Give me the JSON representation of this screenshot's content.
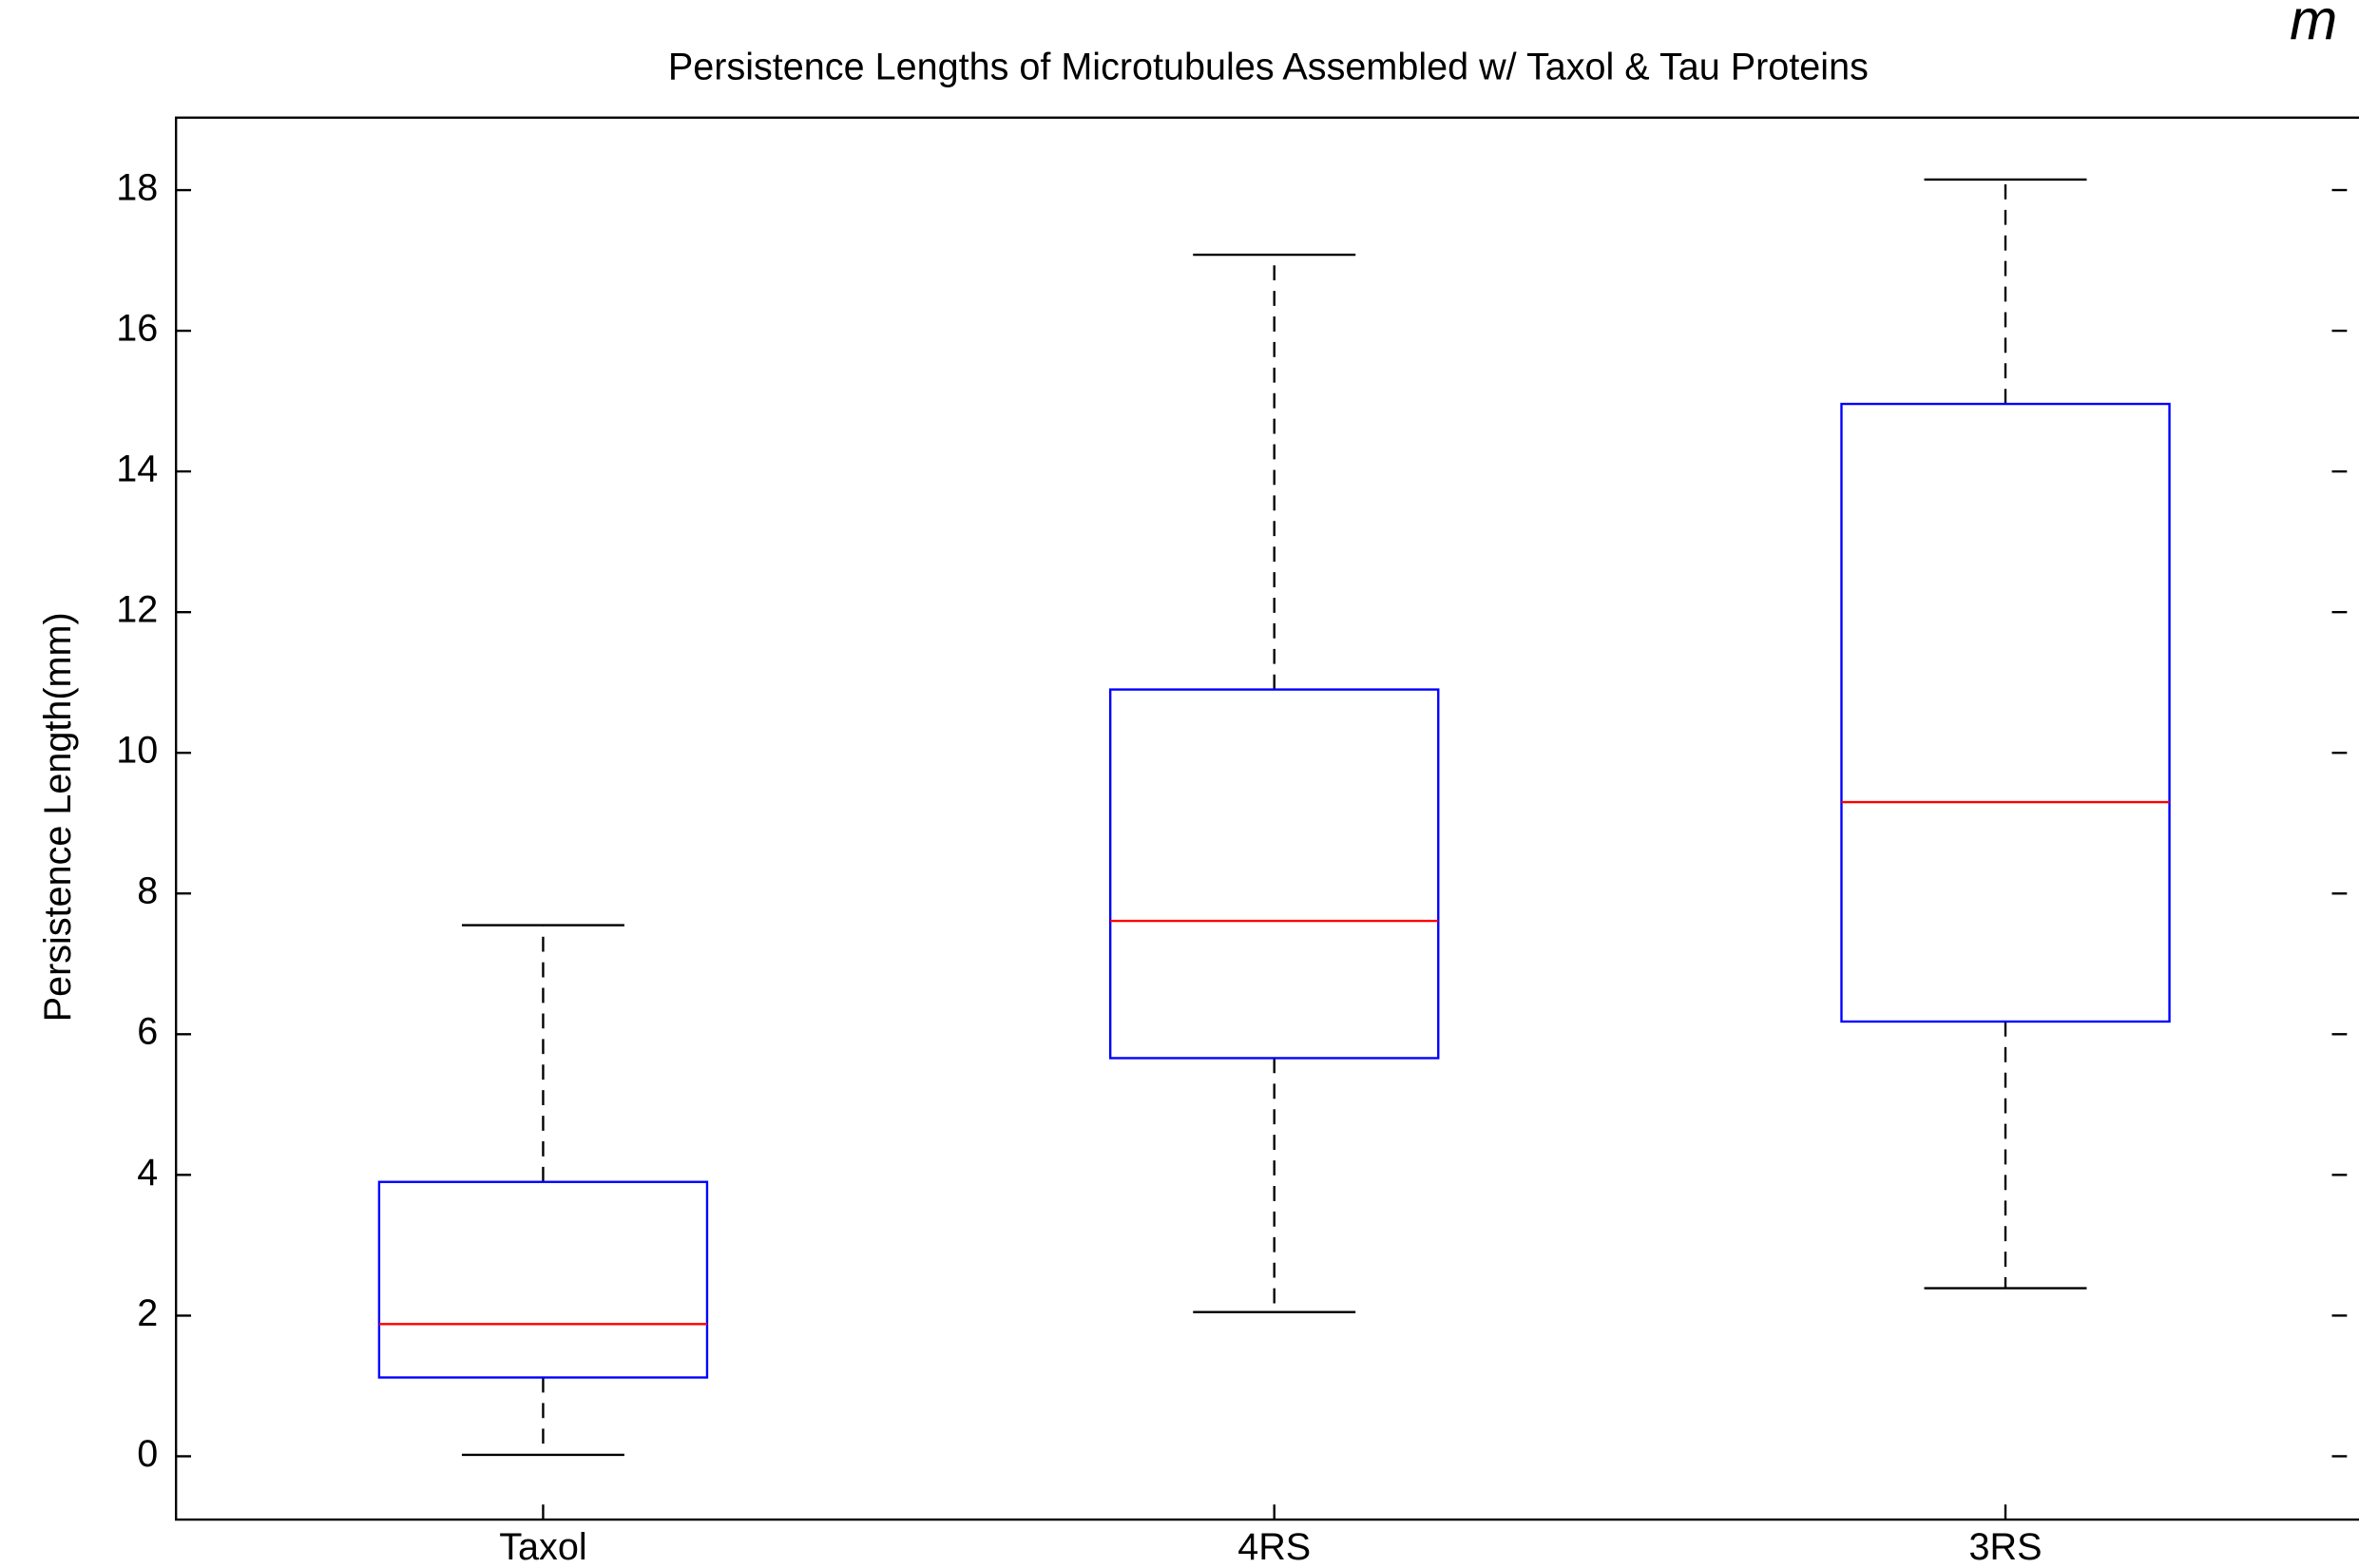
{
  "chart_data": {
    "type": "box",
    "title": "Persistence Lengths of Microtubules Assembled w/ Taxol & Tau Proteins",
    "y_label": "Persistence Length(mm)",
    "annotation": "m",
    "categories": [
      "Taxol",
      "4RS",
      "3RS"
    ],
    "boxes": [
      {
        "whislo": 0.02,
        "q1": 1.12,
        "med": 1.88,
        "q3": 3.9,
        "whishi": 7.55
      },
      {
        "whislo": 2.05,
        "q1": 5.66,
        "med": 7.61,
        "q3": 10.9,
        "whishi": 17.08
      },
      {
        "whislo": 2.39,
        "q1": 6.18,
        "med": 9.3,
        "q3": 14.96,
        "whishi": 18.15
      }
    ],
    "box_color": "#0000ff",
    "median_color": "#ff0000",
    "whisker_color": "#000000",
    "ylim": [
      -0.9,
      19.03
    ],
    "yticks": [
      0,
      2,
      4,
      6,
      8,
      10,
      12,
      14,
      16,
      18
    ]
  }
}
